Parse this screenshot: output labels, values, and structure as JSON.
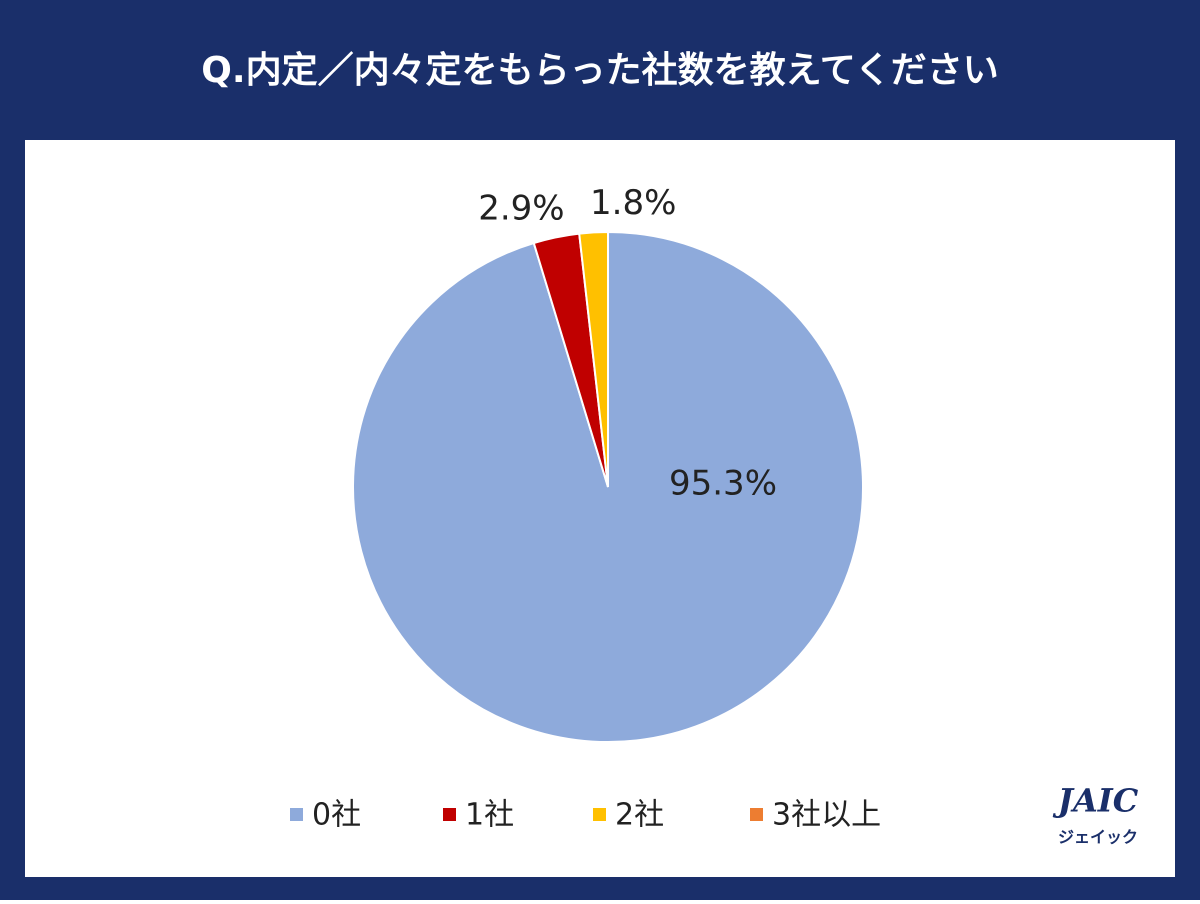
{
  "chart_data": {
    "type": "pie",
    "title": "Q.内定／内々定をもらった社数を教えてください",
    "categories": [
      "0社",
      "1社",
      "2社",
      "3社以上"
    ],
    "values": [
      95.3,
      2.9,
      1.8,
      0
    ],
    "value_labels": [
      "95.3%",
      "2.9%",
      "1.8%",
      null
    ],
    "colors": [
      "#8eaadb",
      "#c00000",
      "#ffc000",
      "#ed7d31"
    ],
    "legend": "bottom"
  },
  "logo": {
    "name": "JAIC",
    "kana": "ジェイック"
  }
}
